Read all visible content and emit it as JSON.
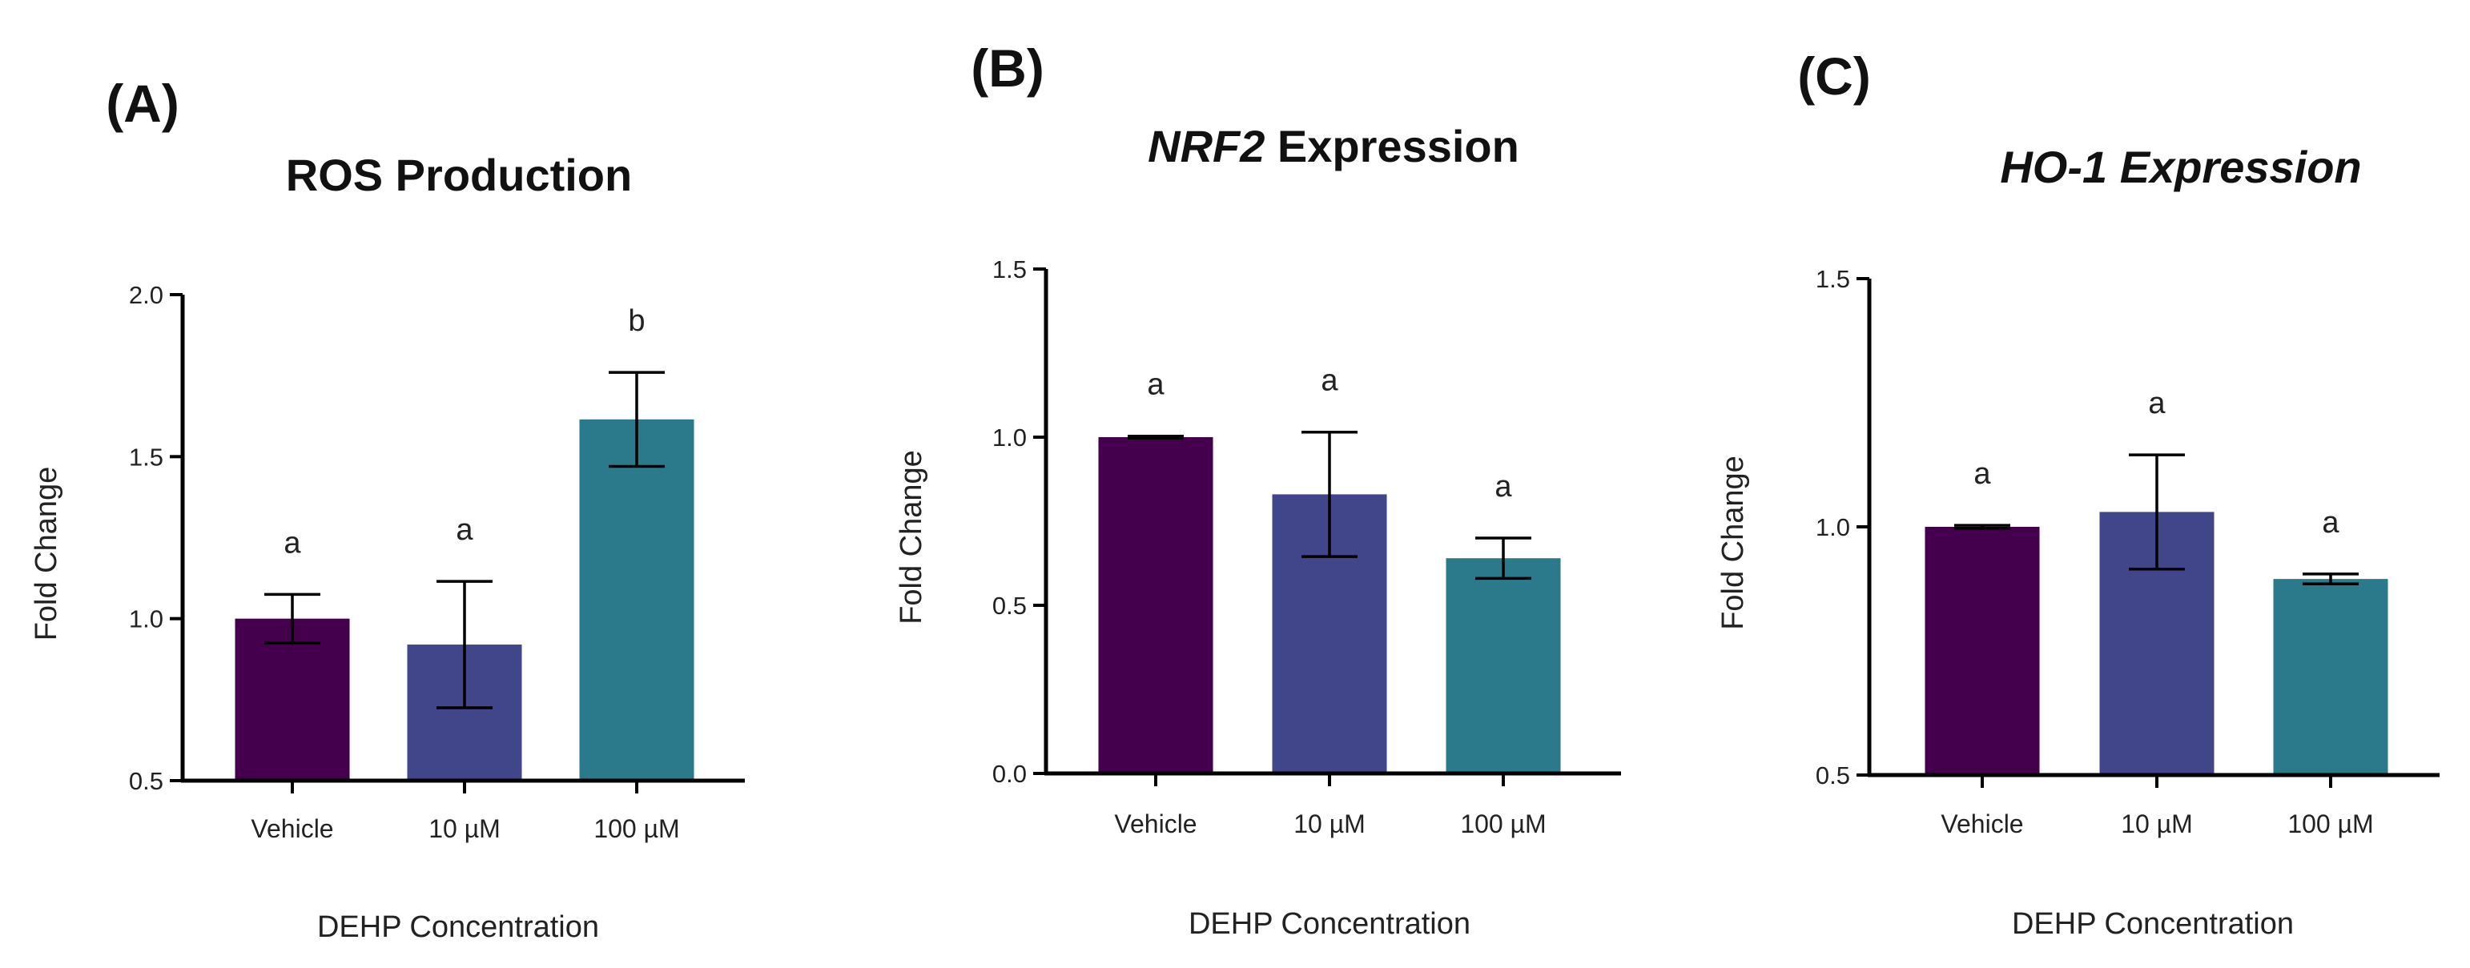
{
  "colors": {
    "vehicle": "#44004d",
    "uM10": "#41468a",
    "uM100": "#2b7a8c"
  },
  "chart_data": [
    {
      "type": "bar",
      "panel": "(A)",
      "title": "ROS Production",
      "title_parts": [
        {
          "text": "ROS Production",
          "italic": false
        }
      ],
      "categories": [
        "Vehicle",
        "10 µM",
        "100 µM"
      ],
      "values": [
        1.0,
        0.92,
        1.615
      ],
      "errors": [
        0.075,
        0.195,
        0.145
      ],
      "significance": [
        "a",
        "a",
        "b"
      ],
      "xlabel": "DEHP Concentration",
      "ylabel": "Fold Change",
      "ylim": [
        0.5,
        2.0
      ],
      "yticks": [
        0.5,
        1.0,
        1.5,
        2.0
      ],
      "ytick_labels": [
        "0.5",
        "1.0",
        "1.5",
        "2.0"
      ]
    },
    {
      "type": "bar",
      "panel": "(B)",
      "title": "NRF2 Expression",
      "title_parts": [
        {
          "text": "NRF2",
          "italic": true
        },
        {
          "text": " Expression",
          "italic": false
        }
      ],
      "categories": [
        "Vehicle",
        "10 µM",
        "100 µM"
      ],
      "values": [
        1.0,
        0.83,
        0.64
      ],
      "errors": [
        0.003,
        0.185,
        0.06
      ],
      "significance": [
        "a",
        "a",
        "a"
      ],
      "xlabel": "DEHP Concentration",
      "ylabel": "Fold Change",
      "ylim": [
        0.0,
        1.5
      ],
      "yticks": [
        0.0,
        0.5,
        1.0,
        1.5
      ],
      "ytick_labels": [
        "0.0",
        "0.5",
        "1.0",
        "1.5"
      ]
    },
    {
      "type": "bar",
      "panel": "(C)",
      "title": "HO-1 Expression",
      "title_parts": [
        {
          "text": "HO-1 Expression",
          "italic": true
        }
      ],
      "categories": [
        "Vehicle",
        "10 µM",
        "100 µM"
      ],
      "values": [
        1.0,
        1.03,
        0.895
      ],
      "errors": [
        0.003,
        0.115,
        0.01
      ],
      "significance": [
        "a",
        "a",
        "a"
      ],
      "xlabel": "DEHP Concentration",
      "ylabel": "Fold Change",
      "ylim": [
        0.5,
        1.5
      ],
      "yticks": [
        0.5,
        1.0,
        1.5
      ],
      "ytick_labels": [
        "0.5",
        "1.0",
        "1.5"
      ]
    }
  ]
}
